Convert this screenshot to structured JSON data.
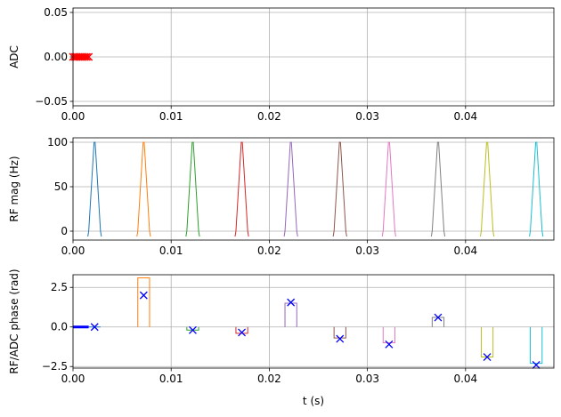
{
  "chart_data": [
    {
      "type": "line",
      "ylabel": "ADC",
      "xlim": [
        0,
        0.049
      ],
      "ylim": [
        -0.055,
        0.055
      ],
      "x_ticks": [
        0.0,
        0.01,
        0.02,
        0.03,
        0.04
      ],
      "x_tick_labels": [
        "0.00",
        "0.01",
        "0.02",
        "0.03",
        "0.04"
      ],
      "y_ticks": [
        0.05,
        0.0,
        -0.05
      ],
      "y_tick_labels": [
        "0.05",
        "0.00",
        "−0.05"
      ],
      "grid": true,
      "series": [
        {
          "color": "#ff0000",
          "style": "x-markers",
          "x": [
            0.0,
            0.0002,
            0.0004,
            0.0006,
            0.0008,
            0.001,
            0.0012,
            0.0014,
            0.0016
          ],
          "y": [
            0,
            0,
            0,
            0,
            0,
            0,
            0,
            0,
            0
          ]
        }
      ]
    },
    {
      "type": "line",
      "ylabel": "RF mag (Hz)",
      "xlim": [
        0,
        0.049
      ],
      "ylim": [
        -10,
        105
      ],
      "x_ticks": [
        0.0,
        0.01,
        0.02,
        0.03,
        0.04
      ],
      "x_tick_labels": [
        "0.00",
        "0.01",
        "0.02",
        "0.03",
        "0.04"
      ],
      "y_ticks": [
        100,
        50,
        0
      ],
      "y_tick_labels": [
        "100",
        "50",
        "0"
      ],
      "grid": true,
      "pulse_centers": [
        0.0022,
        0.0072,
        0.0122,
        0.0172,
        0.0222,
        0.0272,
        0.0322,
        0.0372,
        0.0422,
        0.0472
      ],
      "pulse_half_width": 0.0006,
      "pulse_peak": 100,
      "colors": [
        "#1f77b4",
        "#ff7f0e",
        "#2ca02c",
        "#d62728",
        "#9467bd",
        "#8c564b",
        "#e377c2",
        "#7f7f7f",
        "#bcbd22",
        "#17becf"
      ]
    },
    {
      "type": "line",
      "ylabel": "RF/ADC phase (rad)",
      "xlabel": "t (s)",
      "xlim": [
        0,
        0.049
      ],
      "ylim": [
        -2.6,
        3.3
      ],
      "x_ticks": [
        0.0,
        0.01,
        0.02,
        0.03,
        0.04
      ],
      "x_tick_labels": [
        "0.00",
        "0.01",
        "0.02",
        "0.03",
        "0.04"
      ],
      "y_ticks": [
        2.5,
        0.0,
        -2.5
      ],
      "y_tick_labels": [
        "2.5",
        "0.0",
        "−2.5"
      ],
      "grid": true,
      "pulse_centers": [
        0.0022,
        0.0072,
        0.0122,
        0.0172,
        0.0222,
        0.0272,
        0.0322,
        0.0372,
        0.0422,
        0.0472
      ],
      "pulse_half_width": 0.0006,
      "rf_phase": [
        0.0,
        3.1,
        -0.2,
        -0.4,
        1.5,
        -0.7,
        -1.0,
        0.6,
        -1.9,
        -2.3
      ],
      "marker_phase": [
        0.0,
        2.0,
        -0.2,
        -0.35,
        1.55,
        -0.75,
        -1.1,
        0.6,
        -1.9,
        -2.4
      ],
      "adc_line": {
        "color": "#0000ff",
        "x": [
          0.0,
          0.0016
        ],
        "y": [
          0,
          0
        ]
      },
      "colors": [
        "#1f77b4",
        "#ff7f0e",
        "#2ca02c",
        "#d62728",
        "#9467bd",
        "#8c564b",
        "#e377c2",
        "#7f7f7f",
        "#bcbd22",
        "#17becf"
      ],
      "marker_color": "#0000ff"
    }
  ]
}
